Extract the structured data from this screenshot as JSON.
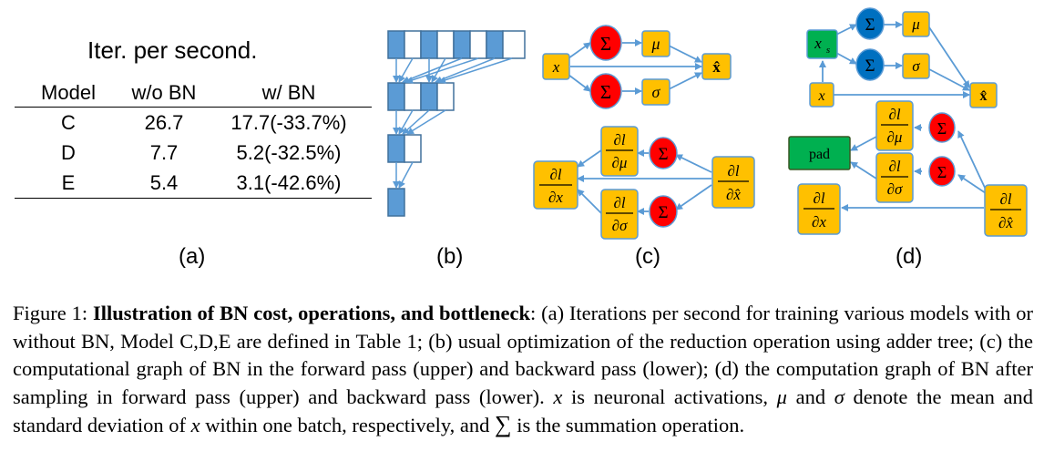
{
  "panel_a": {
    "title": "Iter. per second.",
    "headers": [
      "Model",
      "w/o BN",
      "w/ BN"
    ],
    "rows": [
      [
        "C",
        "26.7",
        "17.7(-33.7%)"
      ],
      [
        "D",
        "7.7",
        "5.2(-32.5%)"
      ],
      [
        "E",
        "5.4",
        "3.1(-42.6%)"
      ]
    ]
  },
  "labels": {
    "a": "(a)",
    "b": "(b)",
    "c": "(c)",
    "d": "(d)"
  },
  "nodes": {
    "x": "x",
    "xs": "x",
    "xs_sub": "s",
    "pad": "pad",
    "sum": "Σ",
    "mu": "μ",
    "sigma": "σ",
    "xhat": "x̂",
    "dl": "∂l",
    "dmu": "∂μ",
    "dsigma": "∂σ",
    "dx": "∂x",
    "dxhat": "∂x̂"
  },
  "colors": {
    "orange": "#FFC000",
    "red": "#FF0000",
    "blue": "#0070C0",
    "green": "#00B050",
    "tree_blue": "#5B9BD5",
    "edge": "#5B9BD5"
  },
  "caption": {
    "fig": "Figure 1: ",
    "bold": "Illustration of BN cost, operations, and bottleneck",
    "p1": ": (a) Iterations per second for training various models with or without BN, Model C,D,E are defined in Table 1; (b) usual optimization of the reduction operation using adder tree; (c) the computational graph of BN in the forward pass (upper) and backward pass (lower); (d) the computation graph of BN after sampling in forward pass (upper) and backward pass (lower). ",
    "x1": "x",
    "p2": " is neuronal activations, ",
    "mu": "μ",
    "p3": " and ",
    "sigma": "σ",
    "p4": " denote the mean and standard deviation of ",
    "x2": "x",
    "p5": " within one batch, respectively, and ",
    "sum": "∑",
    "p6": " is the summation operation."
  }
}
